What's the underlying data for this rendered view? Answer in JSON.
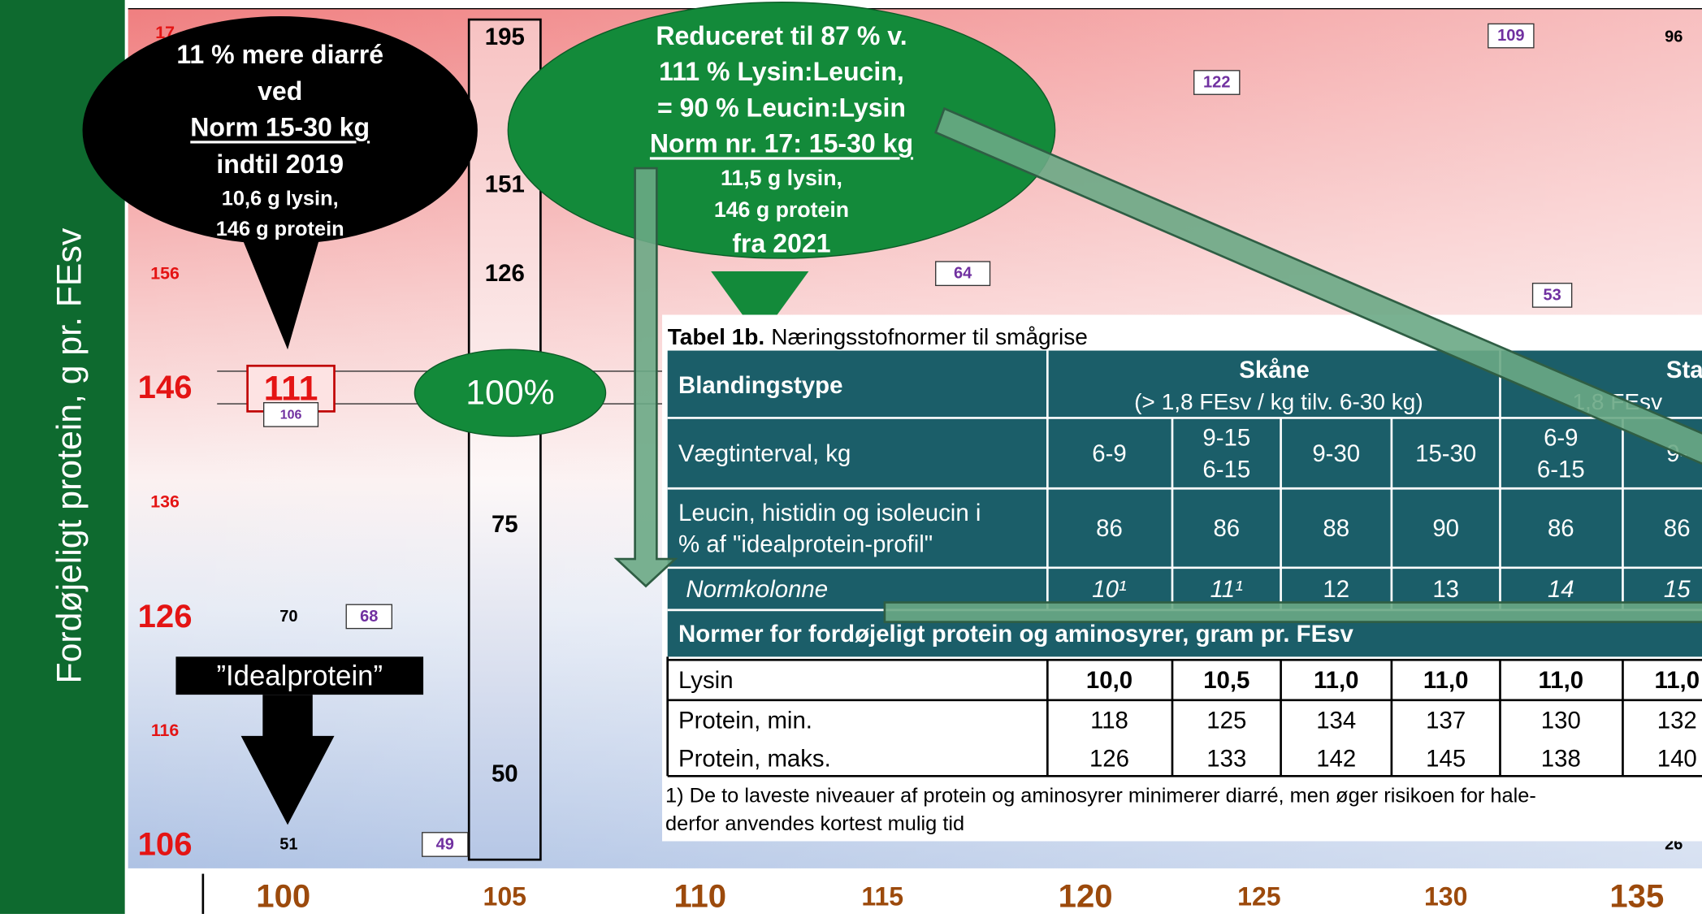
{
  "y_axis": {
    "label": "Fordøjeligt protein, g pr. FEsv",
    "ticks": [
      "17",
      "156",
      "146",
      "136",
      "126",
      "116",
      "106"
    ]
  },
  "x_axis": {
    "ticks": [
      "100",
      "105",
      "110",
      "115",
      "120",
      "125",
      "130",
      "135"
    ]
  },
  "column_labels": [
    "195",
    "151",
    "126",
    "75",
    "50"
  ],
  "cells": [
    "111",
    "106",
    "70",
    "68",
    "51",
    "49",
    "64",
    "122",
    "109",
    "96",
    "53",
    "26"
  ],
  "callout_black": [
    "11 % mere diarré",
    "ved",
    "Norm 15-30 kg",
    "indtil 2019",
    "10,6 g lysin,",
    "146 g protein"
  ],
  "callout_green": [
    "Reduceret til 87 % v.",
    "111 % Lysin:Leucin,",
    "= 90 % Leucin:Lysin",
    "Norm nr. 17: 15-30 kg",
    "11,5 g lysin,",
    "146 g protein",
    "fra 2021"
  ],
  "badge": "100%",
  "ideal": "”Idealprotein”",
  "table": {
    "caption_bold": "Tabel 1b.",
    "caption": "Næringsstofnormer til smågrise",
    "header": {
      "label": "Blandingstype",
      "group1": "Skåne",
      "group1_sub": "(> 1,8 FEsv / kg tilv. 6-30 kg)",
      "group2": "Sta",
      "group2_sub": "1,8 FEsv"
    },
    "rows": [
      [
        [
          "Vægtinterval, kg"
        ],
        [
          "6-9"
        ],
        [
          "9-15",
          "6-15"
        ],
        [
          "9-30"
        ],
        [
          "15-30"
        ],
        [
          "6-9",
          "6-15"
        ],
        [
          "9-"
        ]
      ],
      [
        [
          "Leucin, histidin og isoleucin i",
          "% af \"idealprotein-profil\""
        ],
        [
          "86"
        ],
        [
          "86"
        ],
        [
          "88"
        ],
        [
          "90"
        ],
        [
          "86"
        ],
        [
          "86"
        ]
      ],
      [
        [
          "Normkolonne"
        ],
        [
          "10¹"
        ],
        [
          "11¹"
        ],
        [
          "12"
        ],
        [
          "13"
        ],
        [
          "14"
        ],
        [
          "15"
        ]
      ]
    ],
    "section": "Normer for fordøjeligt protein og aminosyrer, gram pr. FEsv",
    "body": [
      [
        "Lysin",
        "10,0",
        "10,5",
        "11,0",
        "11,0",
        "11,0",
        "11,0"
      ],
      [
        "Protein, min.",
        "118",
        "125",
        "134",
        "137",
        "130",
        "132"
      ],
      [
        "Protein, maks.",
        "126",
        "133",
        "142",
        "145",
        "138",
        "140"
      ]
    ],
    "footnote": [
      "1) De to laveste niveauer af protein og aminosyrer minimerer diarré, men øger risikoen for hale-",
      "derfor anvendes kortest mulig tid"
    ]
  }
}
